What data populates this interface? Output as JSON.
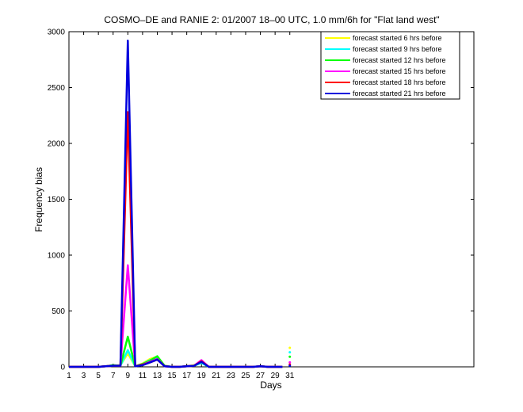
{
  "chart_data": {
    "type": "line",
    "title": "COSMO–DE and RANIE 2: 01/2007 18–00 UTC, 1.0 mm/6h for \"Flat land west\"",
    "xlabel": "Days",
    "ylabel": "Frequency bias",
    "xlim": [
      1,
      56
    ],
    "ylim": [
      0,
      3000
    ],
    "xticks": [
      1,
      3,
      5,
      7,
      9,
      11,
      13,
      15,
      17,
      19,
      21,
      23,
      25,
      27,
      29,
      31
    ],
    "yticks": [
      0,
      500,
      1000,
      1500,
      2000,
      2500,
      3000
    ],
    "grid": false,
    "legend_position": "top-right",
    "series": [
      {
        "name": "forecast started 6 hrs before",
        "color": "#ffff00",
        "points": [
          [
            1,
            0
          ],
          [
            2,
            0
          ],
          [
            3,
            0
          ],
          [
            4,
            0
          ],
          [
            5,
            0
          ],
          [
            6,
            5
          ],
          [
            7,
            10
          ],
          [
            8,
            15
          ],
          [
            9,
            120
          ],
          [
            10,
            5
          ],
          [
            11,
            30
          ],
          [
            12,
            70
          ],
          [
            13,
            90
          ],
          [
            14,
            10
          ],
          [
            15,
            0
          ],
          [
            16,
            0
          ],
          [
            17,
            5
          ],
          [
            18,
            15
          ],
          [
            19,
            40
          ],
          [
            20,
            0
          ],
          [
            21,
            0
          ],
          [
            22,
            0
          ],
          [
            23,
            0
          ],
          [
            24,
            0
          ],
          [
            25,
            0
          ],
          [
            26,
            0
          ],
          [
            27,
            5
          ],
          [
            28,
            0
          ],
          [
            29,
            0
          ],
          [
            30,
            0
          ]
        ],
        "markers": [
          [
            31,
            170
          ]
        ]
      },
      {
        "name": "forecast started 9 hrs before",
        "color": "#00ffff",
        "points": [
          [
            1,
            0
          ],
          [
            2,
            0
          ],
          [
            3,
            0
          ],
          [
            4,
            0
          ],
          [
            5,
            0
          ],
          [
            6,
            5
          ],
          [
            7,
            10
          ],
          [
            8,
            10
          ],
          [
            9,
            150
          ],
          [
            10,
            5
          ],
          [
            11,
            25
          ],
          [
            12,
            60
          ],
          [
            13,
            85
          ],
          [
            14,
            8
          ],
          [
            15,
            0
          ],
          [
            16,
            0
          ],
          [
            17,
            5
          ],
          [
            18,
            10
          ],
          [
            19,
            35
          ],
          [
            20,
            0
          ],
          [
            21,
            0
          ],
          [
            22,
            0
          ],
          [
            23,
            0
          ],
          [
            24,
            0
          ],
          [
            25,
            0
          ],
          [
            26,
            0
          ],
          [
            27,
            5
          ],
          [
            28,
            0
          ],
          [
            29,
            0
          ],
          [
            30,
            0
          ]
        ],
        "markers": [
          [
            31,
            130
          ]
        ]
      },
      {
        "name": "forecast started 12 hrs before",
        "color": "#00ff00",
        "points": [
          [
            1,
            0
          ],
          [
            2,
            0
          ],
          [
            3,
            0
          ],
          [
            4,
            0
          ],
          [
            5,
            0
          ],
          [
            6,
            5
          ],
          [
            7,
            15
          ],
          [
            8,
            10
          ],
          [
            9,
            270
          ],
          [
            10,
            5
          ],
          [
            11,
            25
          ],
          [
            12,
            55
          ],
          [
            13,
            95
          ],
          [
            14,
            8
          ],
          [
            15,
            0
          ],
          [
            16,
            0
          ],
          [
            17,
            5
          ],
          [
            18,
            10
          ],
          [
            19,
            45
          ],
          [
            20,
            0
          ],
          [
            21,
            0
          ],
          [
            22,
            0
          ],
          [
            23,
            0
          ],
          [
            24,
            0
          ],
          [
            25,
            0
          ],
          [
            26,
            0
          ],
          [
            27,
            5
          ],
          [
            28,
            0
          ],
          [
            29,
            0
          ],
          [
            30,
            0
          ]
        ],
        "markers": [
          [
            31,
            90
          ]
        ]
      },
      {
        "name": "forecast started 15 hrs before",
        "color": "#ff00ff",
        "points": [
          [
            1,
            0
          ],
          [
            2,
            0
          ],
          [
            3,
            0
          ],
          [
            4,
            0
          ],
          [
            5,
            0
          ],
          [
            6,
            5
          ],
          [
            7,
            10
          ],
          [
            8,
            10
          ],
          [
            9,
            910
          ],
          [
            10,
            5
          ],
          [
            11,
            20
          ],
          [
            12,
            45
          ],
          [
            13,
            70
          ],
          [
            14,
            5
          ],
          [
            15,
            0
          ],
          [
            16,
            0
          ],
          [
            17,
            5
          ],
          [
            18,
            10
          ],
          [
            19,
            60
          ],
          [
            20,
            0
          ],
          [
            21,
            0
          ],
          [
            22,
            0
          ],
          [
            23,
            0
          ],
          [
            24,
            0
          ],
          [
            25,
            0
          ],
          [
            26,
            0
          ],
          [
            27,
            5
          ],
          [
            28,
            0
          ],
          [
            29,
            0
          ],
          [
            30,
            0
          ]
        ],
        "markers": [
          [
            31,
            40
          ]
        ]
      },
      {
        "name": "forecast started 18 hrs before",
        "color": "#ff0000",
        "points": [
          [
            1,
            0
          ],
          [
            2,
            0
          ],
          [
            3,
            0
          ],
          [
            4,
            0
          ],
          [
            5,
            0
          ],
          [
            6,
            5
          ],
          [
            7,
            10
          ],
          [
            8,
            10
          ],
          [
            9,
            2280
          ],
          [
            10,
            5
          ],
          [
            11,
            20
          ],
          [
            12,
            40
          ],
          [
            13,
            65
          ],
          [
            14,
            5
          ],
          [
            15,
            0
          ],
          [
            16,
            0
          ],
          [
            17,
            5
          ],
          [
            18,
            10
          ],
          [
            19,
            50
          ],
          [
            20,
            0
          ],
          [
            21,
            0
          ],
          [
            22,
            0
          ],
          [
            23,
            0
          ],
          [
            24,
            0
          ],
          [
            25,
            0
          ],
          [
            26,
            0
          ],
          [
            27,
            5
          ],
          [
            28,
            0
          ],
          [
            29,
            0
          ],
          [
            30,
            0
          ]
        ],
        "markers": [
          [
            31,
            20
          ]
        ]
      },
      {
        "name": "forecast started 21 hrs before",
        "color": "#0000dd",
        "points": [
          [
            1,
            0
          ],
          [
            2,
            0
          ],
          [
            3,
            0
          ],
          [
            4,
            0
          ],
          [
            5,
            0
          ],
          [
            6,
            5
          ],
          [
            7,
            10
          ],
          [
            8,
            10
          ],
          [
            9,
            2920
          ],
          [
            10,
            5
          ],
          [
            11,
            15
          ],
          [
            12,
            40
          ],
          [
            13,
            65
          ],
          [
            14,
            5
          ],
          [
            15,
            0
          ],
          [
            16,
            0
          ],
          [
            17,
            5
          ],
          [
            18,
            10
          ],
          [
            19,
            45
          ],
          [
            20,
            0
          ],
          [
            21,
            0
          ],
          [
            22,
            0
          ],
          [
            23,
            0
          ],
          [
            24,
            0
          ],
          [
            25,
            0
          ],
          [
            26,
            0
          ],
          [
            27,
            5
          ],
          [
            28,
            0
          ],
          [
            29,
            0
          ],
          [
            30,
            0
          ]
        ],
        "markers": [
          [
            31,
            10
          ]
        ]
      }
    ]
  }
}
